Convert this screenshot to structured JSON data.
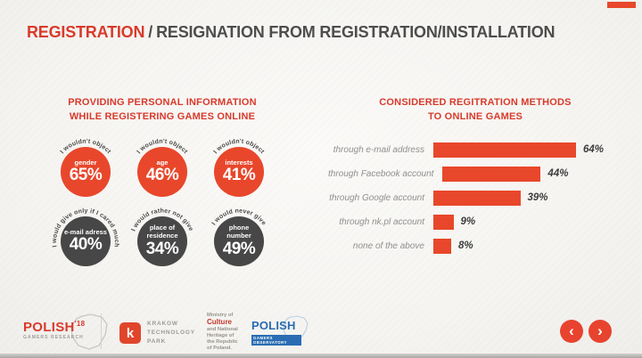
{
  "colors": {
    "accent": "#e8472b",
    "dark_circle": "#474747",
    "title_text": "#4d4d4d",
    "title_highlight": "#d93a2b",
    "label_gray": "#8f8f8f",
    "pgo_blue": "#2a6db3"
  },
  "header": {
    "title_highlight": "REGISTRATION",
    "title_separator": "/",
    "title_rest": "RESIGNATION FROM REGISTRATION/INSTALLATION"
  },
  "left_section": {
    "title_line1": "PROVIDING PERSONAL INFORMATION",
    "title_line2": "WHILE REGISTERING GAMES ONLINE"
  },
  "right_section": {
    "title_line1": "CONSIDERED REGITRATION METHODS",
    "title_line2": "TO ONLINE GAMES"
  },
  "chart_data": [
    {
      "type": "circle-infographic",
      "title": "PROVIDING PERSONAL INFORMATION WHILE REGISTERING GAMES ONLINE",
      "unit": "%",
      "items": [
        {
          "group": "I wouldn't object",
          "category": "gender",
          "value": 65,
          "value_label": "65%",
          "color": "#e8472b"
        },
        {
          "group": "I wouldn't object",
          "category": "age",
          "value": 46,
          "value_label": "46%",
          "color": "#e8472b"
        },
        {
          "group": "I wouldn't object",
          "category": "interests",
          "value": 41,
          "value_label": "41%",
          "color": "#e8472b"
        },
        {
          "group": "I would give only if I cared much",
          "category": "e-mail adress",
          "value": 40,
          "value_label": "40%",
          "color": "#474747"
        },
        {
          "group": "I would rather not give",
          "category": "place of residence",
          "value": 34,
          "value_label": "34%",
          "color": "#474747"
        },
        {
          "group": "I would never give",
          "category": "phone number",
          "value": 49,
          "value_label": "49%",
          "color": "#474747"
        }
      ]
    },
    {
      "type": "bar",
      "orientation": "horizontal",
      "title": "CONSIDERED REGITRATION METHODS TO ONLINE GAMES",
      "categories": [
        "through e-mail address",
        "through Facebook account",
        "through Google account",
        "through nk.pl account",
        "none of the above"
      ],
      "values": [
        64,
        44,
        39,
        9,
        8
      ],
      "value_labels": [
        "64%",
        "44%",
        "39%",
        "9%",
        "8%"
      ],
      "xlim": [
        0,
        100
      ],
      "bar_color": "#e8472b",
      "grid": false,
      "legend": false
    }
  ],
  "footer": {
    "pgr_logo": {
      "name": "POLISH",
      "year": "'18",
      "sub": "GAMERS RESEARCH"
    },
    "ktp_logo": {
      "icon_letter": "k",
      "line1": "KRAKOW",
      "line2": "TECHNOLOGY",
      "line3": "PARK"
    },
    "ministry_logo": {
      "line1": "Ministry of",
      "line2": "Culture",
      "line3": "and National",
      "line4": "Heritage of",
      "line5": "the Republic",
      "line6": "of Poland."
    },
    "pgo_logo": {
      "name": "POLISH",
      "sub": "GAMERS OBSERVATORY"
    },
    "nav": {
      "prev": "‹",
      "next": "›"
    }
  }
}
